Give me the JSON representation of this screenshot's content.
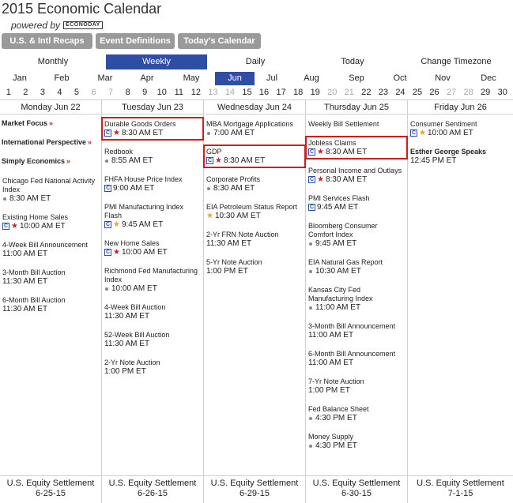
{
  "header": {
    "title": "2015 Economic Calendar",
    "powered_by": "powered by",
    "logo_text": "ECONODAY"
  },
  "top_buttons": [
    "U.S. & Intl Recaps",
    "Event Definitions",
    "Today's Calendar"
  ],
  "views": {
    "items": [
      "Monthly",
      "Weekly",
      "Daily",
      "Today",
      "Change Timezone"
    ],
    "active": "Weekly"
  },
  "months": {
    "items": [
      "Jan",
      "Feb",
      "Mar",
      "Apr",
      "May",
      "Jun",
      "Jul",
      "Aug",
      "Sep",
      "Oct",
      "Nov",
      "Dec"
    ],
    "active": "Jun"
  },
  "days": [
    "1",
    "2",
    "3",
    "4",
    "5",
    "6",
    "7",
    "8",
    "9",
    "10",
    "11",
    "12",
    "13",
    "14",
    "15",
    "16",
    "17",
    "18",
    "19",
    "20",
    "21",
    "22",
    "23",
    "24",
    "25",
    "26",
    "27",
    "28",
    "29",
    "30"
  ],
  "weekend_days": [
    "6",
    "7",
    "13",
    "14",
    "20",
    "21",
    "27",
    "28"
  ],
  "colors": {
    "accent": "#2e4ea5",
    "highlight_box": "#cc1f1f",
    "star_red": "#c42424",
    "star_gold": "#e7a52a"
  },
  "columns": [
    {
      "header": "Monday Jun 22",
      "links": [
        {
          "label": "Market Focus",
          "arrow": "»"
        },
        {
          "label": "International Perspective",
          "arrow": "»"
        },
        {
          "label": "Simply Economics",
          "arrow": "»"
        }
      ],
      "events": [
        {
          "name": "Chicago Fed National Activity Index",
          "time": "8:30 AM ET",
          "icon": "dot"
        },
        {
          "name": "Existing Home Sales",
          "time": "10:00 AM ET",
          "icon": "c-star-red"
        },
        {
          "name": "4-Week Bill Announcement",
          "time": "11:00 AM ET",
          "icon": ""
        },
        {
          "name": "3-Month Bill Auction",
          "time": "11:30 AM ET",
          "icon": ""
        },
        {
          "name": "6-Month Bill Auction",
          "time": "11:30 AM ET",
          "icon": ""
        }
      ],
      "footer": {
        "label": "U.S. Equity Settlement",
        "date": "6-25-15"
      }
    },
    {
      "header": "Tuesday Jun 23",
      "links": [],
      "events": [
        {
          "name": "Durable Goods Orders",
          "time": "8:30 AM ET",
          "icon": "c-star-red",
          "boxed": true
        },
        {
          "name": "Redbook",
          "time": "8:55 AM ET",
          "icon": "dot"
        },
        {
          "name": "FHFA House Price Index",
          "time": "9:00 AM ET",
          "icon": "c"
        },
        {
          "name": "PMI Manufacturing Index Flash",
          "time": "9:45 AM ET",
          "icon": "c-star-gold"
        },
        {
          "name": "New Home Sales",
          "time": "10:00 AM ET",
          "icon": "c-star-red"
        },
        {
          "name": "Richmond Fed Manufacturing Index",
          "time": "10:00 AM ET",
          "icon": "dot"
        },
        {
          "name": "4-Week Bill Auction",
          "time": "11:30 AM ET",
          "icon": ""
        },
        {
          "name": "52-Week Bill Auction",
          "time": "11:30 AM ET",
          "icon": ""
        },
        {
          "name": "2-Yr Note Auction",
          "time": "1:00 PM ET",
          "icon": ""
        }
      ],
      "footer": {
        "label": "U.S. Equity Settlement",
        "date": "6-26-15"
      }
    },
    {
      "header": "Wednesday Jun 24",
      "links": [],
      "events": [
        {
          "name": "MBA Mortgage Applications",
          "time": "7:00 AM ET",
          "icon": "dot"
        },
        {
          "name": "GDP",
          "time": "8:30 AM ET",
          "icon": "c-star-red",
          "boxed": true
        },
        {
          "name": "Corporate Profits",
          "time": "8:30 AM ET",
          "icon": "dot"
        },
        {
          "name": "EIA Petroleum Status Report",
          "time": "10:30 AM ET",
          "icon": "star-gold"
        },
        {
          "name": "2-Yr FRN Note Auction",
          "time": "11:30 AM ET",
          "icon": ""
        },
        {
          "name": "5-Yr Note Auction",
          "time": "1:00 PM ET",
          "icon": ""
        }
      ],
      "footer": {
        "label": "U.S. Equity Settlement",
        "date": "6-29-15"
      }
    },
    {
      "header": "Thursday Jun 25",
      "links": [],
      "events": [
        {
          "name": "Weekly Bill Settlement",
          "time": "",
          "icon": ""
        },
        {
          "name": "Jobless Claims",
          "time": "8:30 AM ET",
          "icon": "c-star-red",
          "boxed": true
        },
        {
          "name": "Personal Income and Outlays",
          "time": "8:30 AM ET",
          "icon": "c-star-red"
        },
        {
          "name": "PMI Services Flash",
          "time": "9:45 AM ET",
          "icon": "c"
        },
        {
          "name": "Bloomberg Consumer Comfort Index",
          "time": "9:45 AM ET",
          "icon": "dot"
        },
        {
          "name": "EIA Natural Gas Report",
          "time": "10:30 AM ET",
          "icon": "dot"
        },
        {
          "name": "Kansas City Fed Manufacturing Index",
          "time": "11:00 AM ET",
          "icon": "dot"
        },
        {
          "name": "3-Month Bill Announcement",
          "time": "11:00 AM ET",
          "icon": ""
        },
        {
          "name": "6-Month Bill Announcement",
          "time": "11:00 AM ET",
          "icon": ""
        },
        {
          "name": "7-Yr Note Auction",
          "time": "1:00 PM ET",
          "icon": ""
        },
        {
          "name": "Fed Balance Sheet",
          "time": "4:30 PM ET",
          "icon": "dot"
        },
        {
          "name": "Money Supply",
          "time": "4:30 PM ET",
          "icon": "dot"
        }
      ],
      "footer": {
        "label": "U.S. Equity Settlement",
        "date": "6-30-15"
      }
    },
    {
      "header": "Friday Jun 26",
      "links": [],
      "events": [
        {
          "name": "Consumer Sentiment",
          "time": "10:00 AM ET",
          "icon": "c-star-gold"
        },
        {
          "name": "Esther George Speaks",
          "time": "12:45 PM ET",
          "icon": "",
          "bold": true
        }
      ],
      "footer": {
        "label": "U.S. Equity Settlement",
        "date": "7-1-15"
      }
    }
  ]
}
